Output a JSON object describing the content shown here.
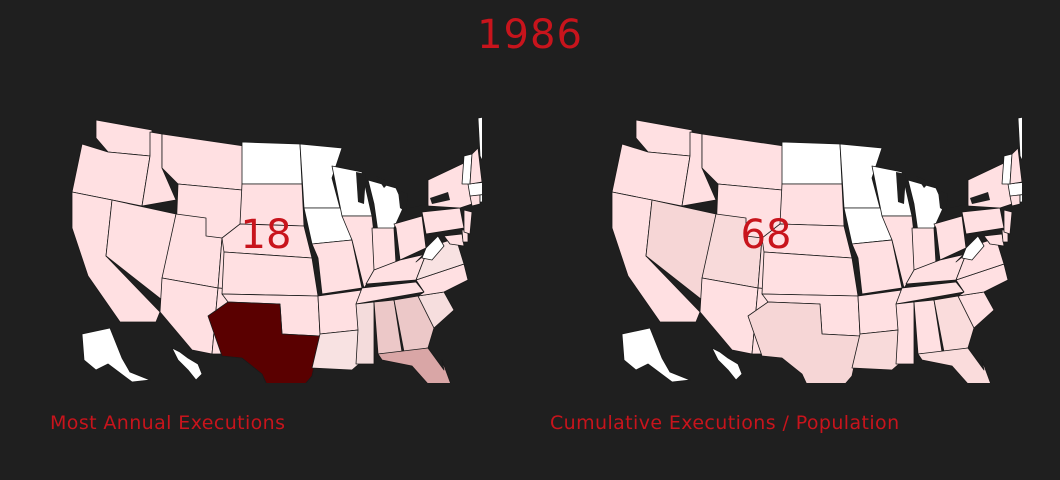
{
  "year": "1986",
  "panels": {
    "left": {
      "value": "18",
      "caption": "Most Annual Executions",
      "highlights": {
        "TX": "#5a0000",
        "FL": "#d9a6a6",
        "GA": "#ecc8c8",
        "AL": "#ecc8c8",
        "MS": "#f4dcdc",
        "SC": "#f6dede",
        "LA": "#f8e2e2",
        "VA": "#f8e2e2"
      }
    },
    "right": {
      "value": "68",
      "caption": "Cumulative Executions / Population",
      "highlights": {
        "TX": "#f6d6d6",
        "NV": "#f6d6d6",
        "UT": "#f8dada",
        "LA": "#f8dada",
        "FL": "#fadcdc",
        "GA": "#fadcdc"
      }
    }
  },
  "colors": {
    "background": "#1f1f1f",
    "text_accent": "#c8141c",
    "state_default": "#ffe0e2",
    "state_none": "#ffffff",
    "state_border": "#1a1a1a"
  },
  "no_death_penalty_states": [
    "ND",
    "MN",
    "WI",
    "MI",
    "IA",
    "WV",
    "ME",
    "VT",
    "MA",
    "RI",
    "HI",
    "AK"
  ]
}
